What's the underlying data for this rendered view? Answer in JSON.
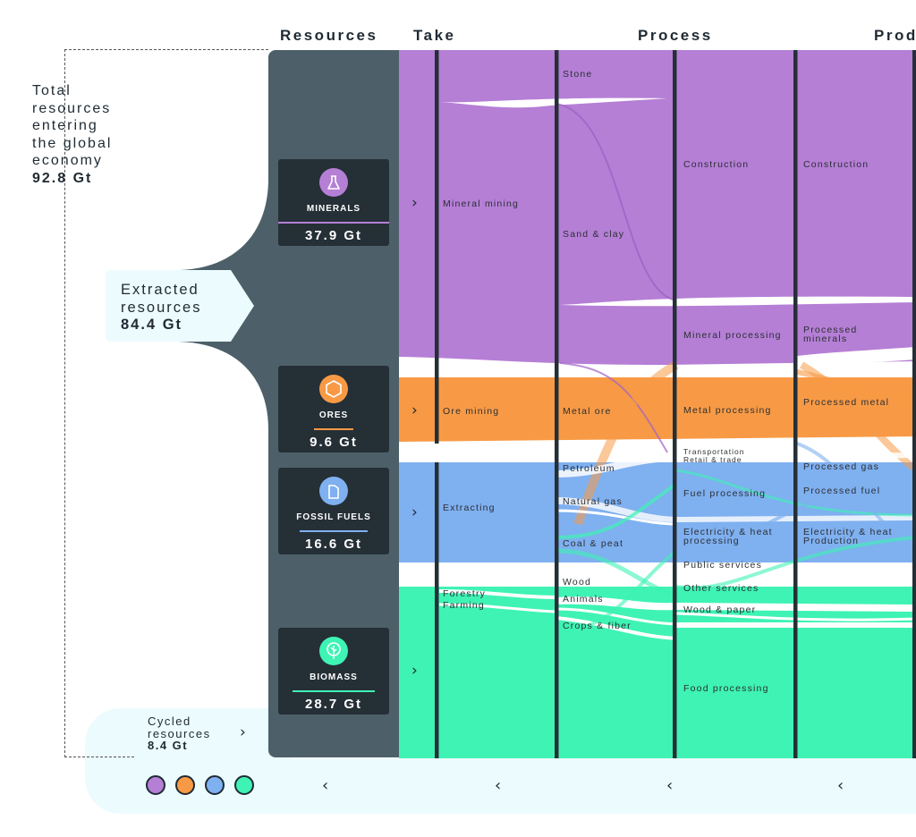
{
  "headers": {
    "resources": "Resources",
    "take": "Take",
    "process": "Process",
    "produce": "Prod"
  },
  "total": {
    "line1": "Total",
    "line2": "resources",
    "line3": "entering",
    "line4": "the global",
    "line5": "economy",
    "value": "92.8 Gt"
  },
  "extracted": {
    "line1": "Extracted",
    "line2": "resources",
    "value": "84.4 Gt"
  },
  "cycled": {
    "line1": "Cycled",
    "line2": "resources",
    "value": "8.4 Gt"
  },
  "resources": [
    {
      "label": "MINERALS",
      "value": "37.9 Gt",
      "color": "#b57fd6",
      "icon": "flask-icon"
    },
    {
      "label": "ORES",
      "value": "9.6 Gt",
      "color": "#f89a45",
      "icon": "hexagon-icon"
    },
    {
      "label": "FOSSIL FUELS",
      "value": "16.6 Gt",
      "color": "#7fb0f0",
      "icon": "canister-icon"
    },
    {
      "label": "BIOMASS",
      "value": "28.7 Gt",
      "color": "#3ef3b4",
      "icon": "leaf-icon"
    }
  ],
  "take_labels": {
    "mineral_mining": "Mineral mining",
    "ore_mining": "Ore mining",
    "extracting": "Extracting",
    "forestry": "Forestry",
    "farming": "Farming"
  },
  "col2_labels": {
    "stone": "Stone",
    "sand_clay": "Sand & clay",
    "metal_ore": "Metal ore",
    "petroleum": "Petroleum",
    "natural_gas": "Natural gas",
    "coal_peat": "Coal & peat",
    "wood": "Wood",
    "animals": "Animals",
    "crops_fiber": "Crops & fiber"
  },
  "process_labels": {
    "construction": "Construction",
    "mineral_processing": "Mineral processing",
    "metal_processing": "Metal processing",
    "transportation": "Transportation",
    "retail_trade": "Retail & trade",
    "fuel_processing": "Fuel processing",
    "electricity_heat_processing": "Electricity & heat processing",
    "public_services": "Public services",
    "other_services": "Other services",
    "wood_paper": "Wood & paper",
    "food_processing": "Food processing"
  },
  "produce_labels": {
    "construction": "Construction",
    "processed_minerals": "Processed minerals",
    "processed_metal": "Processed metal",
    "processed_gas": "Processed gas",
    "processed_fuel": "Processed fuel",
    "electricity_heat_production": "Electricity & heat Production"
  },
  "colors": {
    "minerals": "#b57fd6",
    "ores": "#f89a45",
    "fossil": "#7fb0f0",
    "biomass": "#3ef3b4",
    "panel": "#4d6069",
    "card": "#252f36",
    "divider": "#252f36"
  }
}
